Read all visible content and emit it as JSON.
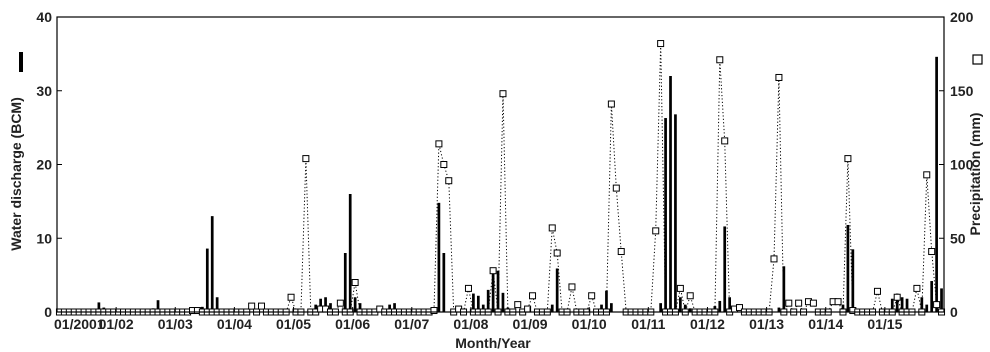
{
  "chart_data": {
    "type": "bar",
    "title": "",
    "xlabel": "Month/Year",
    "ylabel_left": "Water discharge (BCM)",
    "ylabel_right": "Precipitation (mm)",
    "x_range": [
      "2001-01",
      "2015-12"
    ],
    "x_ticks": [
      {
        "month": "2001-01",
        "label": "01/2001"
      },
      {
        "month": "2002-01",
        "label": "01/02"
      },
      {
        "month": "2003-01",
        "label": "01/03"
      },
      {
        "month": "2004-01",
        "label": "01/04"
      },
      {
        "month": "2005-01",
        "label": "01/05"
      },
      {
        "month": "2006-01",
        "label": "01/06"
      },
      {
        "month": "2007-01",
        "label": "01/07"
      },
      {
        "month": "2008-01",
        "label": "01/08"
      },
      {
        "month": "2009-01",
        "label": "01/09"
      },
      {
        "month": "2010-01",
        "label": "01/10"
      },
      {
        "month": "2011-01",
        "label": "01/11"
      },
      {
        "month": "2012-01",
        "label": "01/12"
      },
      {
        "month": "2013-01",
        "label": "01/13"
      },
      {
        "month": "2014-01",
        "label": "01/14"
      },
      {
        "month": "2015-01",
        "label": "01/15"
      }
    ],
    "y_left": {
      "range": [
        0,
        40
      ],
      "ticks": [
        "0",
        "10",
        "20",
        "30",
        "40"
      ]
    },
    "y_right": {
      "range": [
        0,
        200
      ],
      "ticks": [
        "0",
        "50",
        "100",
        "150",
        "200"
      ]
    },
    "series": [
      {
        "name": "Water discharge (BCM)",
        "axis": "left",
        "style": "bar",
        "color": "#000000",
        "points": [
          [
            "2001-09",
            1.3
          ],
          [
            "2001-10",
            0.6
          ],
          [
            "2002-08",
            0.5
          ],
          [
            "2002-09",
            1.6
          ],
          [
            "2003-06",
            0.7
          ],
          [
            "2003-07",
            8.6
          ],
          [
            "2003-08",
            13.0
          ],
          [
            "2003-09",
            2.0
          ],
          [
            "2005-05",
            1.0
          ],
          [
            "2005-06",
            1.8
          ],
          [
            "2005-07",
            2.0
          ],
          [
            "2005-08",
            1.2
          ],
          [
            "2005-11",
            8.0
          ],
          [
            "2005-12",
            16.0
          ],
          [
            "2006-01",
            2.0
          ],
          [
            "2006-02",
            1.2
          ],
          [
            "2006-08",
            1.0
          ],
          [
            "2006-09",
            1.2
          ],
          [
            "2007-05",
            0.6
          ],
          [
            "2007-06",
            14.8
          ],
          [
            "2007-07",
            8.0
          ],
          [
            "2008-01",
            2.5
          ],
          [
            "2008-02",
            2.2
          ],
          [
            "2008-03",
            1.0
          ],
          [
            "2008-04",
            3.0
          ],
          [
            "2008-05",
            5.8
          ],
          [
            "2008-06",
            5.6
          ],
          [
            "2008-07",
            2.6
          ],
          [
            "2008-08",
            0.6
          ],
          [
            "2009-05",
            1.0
          ],
          [
            "2009-06",
            5.9
          ],
          [
            "2010-03",
            1.0
          ],
          [
            "2010-04",
            2.9
          ],
          [
            "2010-05",
            1.2
          ],
          [
            "2011-03",
            1.2
          ],
          [
            "2011-04",
            26.3
          ],
          [
            "2011-05",
            32.0
          ],
          [
            "2011-06",
            26.8
          ],
          [
            "2011-07",
            2.0
          ],
          [
            "2011-08",
            1.0
          ],
          [
            "2011-09",
            0.5
          ],
          [
            "2012-02",
            0.8
          ],
          [
            "2012-03",
            1.5
          ],
          [
            "2012-04",
            11.6
          ],
          [
            "2012-05",
            2.0
          ],
          [
            "2013-03",
            0.6
          ],
          [
            "2013-04",
            6.2
          ],
          [
            "2014-04",
            1.0
          ],
          [
            "2014-05",
            11.8
          ],
          [
            "2014-06",
            8.5
          ],
          [
            "2015-02",
            1.8
          ],
          [
            "2015-03",
            2.5
          ],
          [
            "2015-04",
            2.0
          ],
          [
            "2015-05",
            1.8
          ],
          [
            "2015-08",
            2.0
          ],
          [
            "2015-09",
            1.0
          ],
          [
            "2015-10",
            4.2
          ],
          [
            "2015-11",
            34.6
          ],
          [
            "2015-12",
            3.2
          ]
        ]
      },
      {
        "name": "Precipitation (mm)",
        "axis": "right",
        "style": "dotted-line-square-markers",
        "color": "#000000",
        "points": [
          [
            "2003-04",
            1.0
          ],
          [
            "2003-05",
            1.0
          ],
          [
            "2004-04",
            4.0
          ],
          [
            "2004-06",
            4.0
          ],
          [
            "2004-12",
            10.0
          ],
          [
            "2005-03",
            104.0
          ],
          [
            "2005-06",
            2.0
          ],
          [
            "2005-07",
            2.0
          ],
          [
            "2005-10",
            6.0
          ],
          [
            "2006-01",
            20.0
          ],
          [
            "2006-06",
            2.0
          ],
          [
            "2007-05",
            1.0
          ],
          [
            "2007-06",
            114.0
          ],
          [
            "2007-07",
            100.0
          ],
          [
            "2007-08",
            89.0
          ],
          [
            "2007-10",
            2.0
          ],
          [
            "2007-12",
            16.0
          ],
          [
            "2008-05",
            28.0
          ],
          [
            "2008-07",
            148.0
          ],
          [
            "2008-10",
            5.0
          ],
          [
            "2008-12",
            2.0
          ],
          [
            "2009-01",
            11.0
          ],
          [
            "2009-05",
            57.0
          ],
          [
            "2009-06",
            40.0
          ],
          [
            "2009-09",
            17.0
          ],
          [
            "2010-01",
            11.0
          ],
          [
            "2010-05",
            141.0
          ],
          [
            "2010-06",
            84.0
          ],
          [
            "2010-07",
            41.0
          ],
          [
            "2011-02",
            55.0
          ],
          [
            "2011-03",
            182.0
          ],
          [
            "2011-07",
            16.0
          ],
          [
            "2011-09",
            11.0
          ],
          [
            "2012-03",
            171.0
          ],
          [
            "2012-04",
            116.0
          ],
          [
            "2012-06",
            2.0
          ],
          [
            "2012-07",
            3.0
          ],
          [
            "2013-02",
            36.0
          ],
          [
            "2013-03",
            159.0
          ],
          [
            "2013-05",
            6.0
          ],
          [
            "2013-07",
            6.0
          ],
          [
            "2013-09",
            7.0
          ],
          [
            "2013-10",
            6.0
          ],
          [
            "2014-02",
            7.0
          ],
          [
            "2014-03",
            7.0
          ],
          [
            "2014-05",
            104.0
          ],
          [
            "2014-06",
            1.0
          ],
          [
            "2014-11",
            14.0
          ],
          [
            "2015-03",
            10.0
          ],
          [
            "2015-07",
            16.0
          ],
          [
            "2015-09",
            93.0
          ],
          [
            "2015-10",
            41.0
          ],
          [
            "2015-11",
            5.0
          ]
        ]
      }
    ],
    "grid": false,
    "legend": "none (series identified by axis labels)"
  }
}
